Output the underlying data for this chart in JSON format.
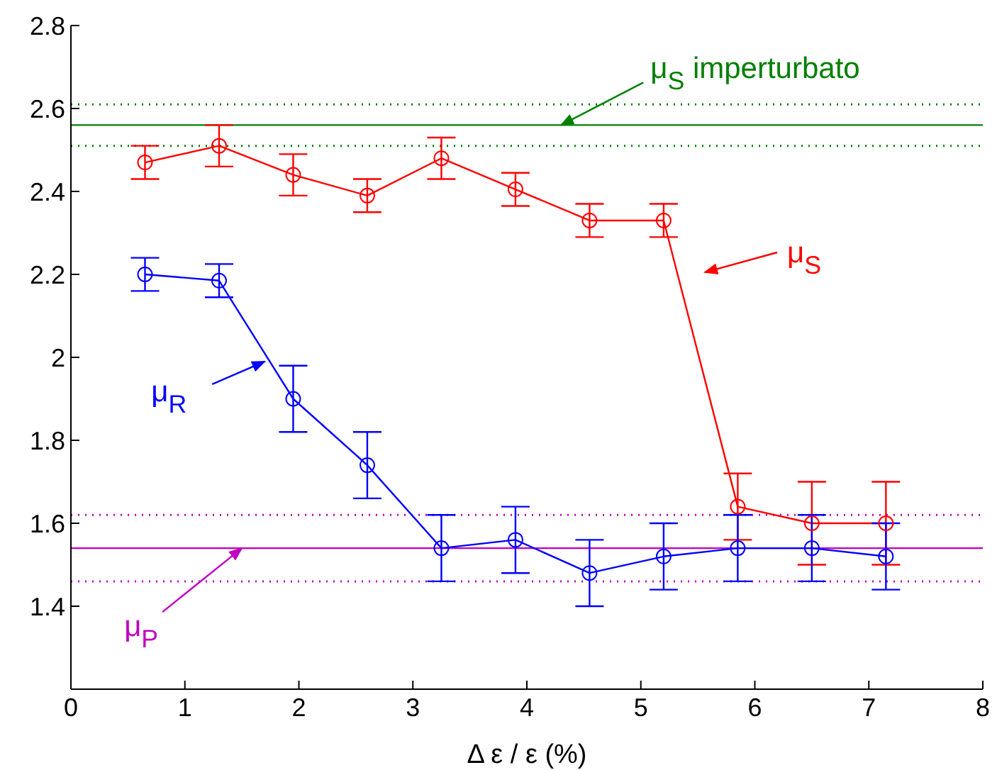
{
  "chart_data": {
    "type": "line",
    "xlabel": "Δ ε / ε (%)",
    "x": [
      0.65,
      1.3,
      1.95,
      2.6,
      3.25,
      3.9,
      4.55,
      5.2,
      5.85,
      6.5,
      7.15
    ],
    "series": [
      {
        "color": "#ff0000",
        "values": [
          2.47,
          2.51,
          2.44,
          2.39,
          2.48,
          2.405,
          2.33,
          2.33,
          1.64,
          1.6,
          1.6
        ],
        "errors": [
          0.04,
          0.05,
          0.05,
          0.04,
          0.05,
          0.04,
          0.04,
          0.04,
          0.08,
          0.1,
          0.1
        ]
      },
      {
        "color": "#0000ff",
        "values": [
          2.2,
          2.185,
          1.9,
          1.74,
          1.54,
          1.56,
          1.48,
          1.52,
          1.54,
          1.54,
          1.52
        ],
        "errors": [
          0.04,
          0.04,
          0.08,
          0.08,
          0.08,
          0.08,
          0.08,
          0.08,
          0.08,
          0.08,
          0.08
        ]
      }
    ],
    "xlim": [
      0,
      8
    ],
    "xticks": [
      0,
      1,
      2,
      3,
      4,
      5,
      6,
      7,
      8
    ],
    "ylim": [
      1.2,
      2.8
    ],
    "yticks": [
      1.4,
      1.6,
      1.8,
      2,
      2.2,
      2.4,
      2.6,
      2.8
    ],
    "ref_lines": [
      {
        "axis": "y",
        "value": 2.56,
        "color": "#008000",
        "line_style": "solid"
      },
      {
        "axis": "y",
        "value": 2.51,
        "color": "#008000",
        "line_style": "dotted"
      },
      {
        "axis": "y",
        "value": 2.61,
        "color": "#008000",
        "line_style": "dotted"
      },
      {
        "axis": "y",
        "value": 1.54,
        "color": "#c000c0",
        "line_style": "solid"
      },
      {
        "axis": "y",
        "value": 1.46,
        "color": "#c000c0",
        "line_style": "dotted"
      },
      {
        "axis": "y",
        "value": 1.62,
        "color": "#c000c0",
        "line_style": "dotted"
      }
    ],
    "annotations": [
      {
        "text": "μ$_{S}$ imperturbato",
        "x": 4.3,
        "y": 2.56
      },
      "μ$_{S}$",
      {
        "text": "μ$_{R}$",
        "x": 1.7,
        "y": 1.99
      },
      {
        "text": "μ$_{P}$",
        "x": 1.5,
        "y": 1.54
      }
    ],
    "marker": "circle",
    "line_style": "solid",
    "grid": false,
    "legend": false
  }
}
